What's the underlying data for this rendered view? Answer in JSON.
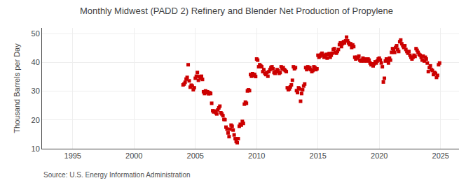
{
  "chart_data": {
    "type": "scatter",
    "title": "Monthly Midwest (PADD 2) Refinery and Blender Net Production of Propylene",
    "ylabel": "Thousand Barrels per Day",
    "annotations": [
      "Source: U.S. Energy Information Administration"
    ],
    "color": "#cc0000",
    "marker": "square",
    "grid": true,
    "xlim": [
      1992.5,
      2026.5
    ],
    "ylim": [
      10,
      52
    ],
    "xticks": [
      1995,
      2000,
      2005,
      2010,
      2015,
      2020,
      2025
    ],
    "yticks": [
      10,
      20,
      30,
      40,
      50
    ],
    "x": [
      2004.0,
      2004.083,
      2004.167,
      2004.25,
      2004.333,
      2004.417,
      2004.5,
      2004.583,
      2004.667,
      2004.75,
      2004.833,
      2004.917,
      2005.0,
      2005.083,
      2005.167,
      2005.25,
      2005.333,
      2005.417,
      2005.5,
      2005.583,
      2005.667,
      2005.75,
      2005.833,
      2005.917,
      2006.0,
      2006.083,
      2006.167,
      2006.25,
      2006.333,
      2006.417,
      2006.5,
      2006.583,
      2006.667,
      2006.75,
      2006.833,
      2006.917,
      2007.0,
      2007.083,
      2007.167,
      2007.25,
      2007.333,
      2007.417,
      2007.5,
      2007.583,
      2007.667,
      2007.75,
      2007.833,
      2007.917,
      2008.0,
      2008.083,
      2008.167,
      2008.25,
      2008.333,
      2008.417,
      2008.5,
      2008.583,
      2008.667,
      2008.75,
      2008.833,
      2008.917,
      2009.0,
      2009.083,
      2009.167,
      2009.25,
      2009.333,
      2009.417,
      2009.5,
      2009.583,
      2009.667,
      2009.75,
      2009.833,
      2009.917,
      2010.0,
      2010.083,
      2010.167,
      2010.25,
      2010.333,
      2010.417,
      2010.5,
      2010.583,
      2010.667,
      2010.75,
      2010.833,
      2010.917,
      2011.0,
      2011.083,
      2011.167,
      2011.25,
      2011.333,
      2011.417,
      2011.5,
      2011.583,
      2011.667,
      2011.75,
      2011.833,
      2011.917,
      2012.0,
      2012.083,
      2012.167,
      2012.25,
      2012.333,
      2012.417,
      2012.5,
      2012.583,
      2012.667,
      2012.75,
      2012.833,
      2012.917,
      2013.0,
      2013.083,
      2013.167,
      2013.25,
      2013.333,
      2013.417,
      2013.5,
      2013.583,
      2013.667,
      2013.75,
      2013.833,
      2013.917,
      2014.0,
      2014.083,
      2014.167,
      2014.25,
      2014.333,
      2014.417,
      2014.5,
      2014.583,
      2014.667,
      2014.75,
      2014.833,
      2014.917,
      2015.0,
      2015.083,
      2015.167,
      2015.25,
      2015.333,
      2015.417,
      2015.5,
      2015.583,
      2015.667,
      2015.75,
      2015.833,
      2015.917,
      2016.0,
      2016.083,
      2016.167,
      2016.25,
      2016.333,
      2016.417,
      2016.5,
      2016.583,
      2016.667,
      2016.75,
      2016.833,
      2016.917,
      2017.0,
      2017.083,
      2017.167,
      2017.25,
      2017.333,
      2017.417,
      2017.5,
      2017.583,
      2017.667,
      2017.75,
      2017.833,
      2017.917,
      2018.0,
      2018.083,
      2018.167,
      2018.25,
      2018.333,
      2018.417,
      2018.5,
      2018.583,
      2018.667,
      2018.75,
      2018.833,
      2018.917,
      2019.0,
      2019.083,
      2019.167,
      2019.25,
      2019.333,
      2019.417,
      2019.5,
      2019.583,
      2019.667,
      2019.75,
      2019.833,
      2019.917,
      2020.0,
      2020.083,
      2020.167,
      2020.25,
      2020.333,
      2020.417,
      2020.5,
      2020.583,
      2020.667,
      2020.75,
      2020.833,
      2020.917,
      2021.0,
      2021.083,
      2021.167,
      2021.25,
      2021.333,
      2021.417,
      2021.5,
      2021.583,
      2021.667,
      2021.75,
      2021.833,
      2021.917,
      2022.0,
      2022.083,
      2022.167,
      2022.25,
      2022.333,
      2022.417,
      2022.5,
      2022.583,
      2022.667,
      2022.75,
      2022.833,
      2022.917,
      2023.0,
      2023.083,
      2023.167,
      2023.25,
      2023.333,
      2023.417,
      2023.5,
      2023.583,
      2023.667,
      2023.75,
      2023.833,
      2023.917,
      2024.0,
      2024.083,
      2024.167,
      2024.25,
      2024.333,
      2024.417,
      2024.5,
      2024.583,
      2024.667,
      2024.75,
      2024.833,
      2024.917
    ],
    "values": [
      32.2,
      32.5,
      33.1,
      34.2,
      34.8,
      39.2,
      33.6,
      31.4,
      32.1,
      31.8,
      30.5,
      31.2,
      34.5,
      35.2,
      36.5,
      33.8,
      35.1,
      34.5,
      35.2,
      34.1,
      29.8,
      29.2,
      30.1,
      29.5,
      29.8,
      29.1,
      29.5,
      29.2,
      25.8,
      23.2,
      22.8,
      23.1,
      22.5,
      22.1,
      23.5,
      24.2,
      24.8,
      22.5,
      22.1,
      21.5,
      20.2,
      20.1,
      17.5,
      16.8,
      15.5,
      14.2,
      16.8,
      18.2,
      17.8,
      16.5,
      14.8,
      13.5,
      12.5,
      12.1,
      13.5,
      17.8,
      18.5,
      18.2,
      19.5,
      18.8,
      25.5,
      26.2,
      25.8,
      30.1,
      30.5,
      30.2,
      35.8,
      35.2,
      36.1,
      35.5,
      35.8,
      35.1,
      41.2,
      40.8,
      38.5,
      39.2,
      38.8,
      38.5,
      36.8,
      37.5,
      36.2,
      35.8,
      36.5,
      35.2,
      36.8,
      37.5,
      38.2,
      38.5,
      37.8,
      36.5,
      36.2,
      36.8,
      37.5,
      37.1,
      36.2,
      36.5,
      38.5,
      37.8,
      38.2,
      37.5,
      37.2,
      36.8,
      31.2,
      30.5,
      30.8,
      31.5,
      32.2,
      33.8,
      38.5,
      37.8,
      38.2,
      30.2,
      29.5,
      31.2,
      30.8,
      26.5,
      29.2,
      30.5,
      31.8,
      32.5,
      38.2,
      37.5,
      38.5,
      37.8,
      38.2,
      37.5,
      36.8,
      37.2,
      38.5,
      38.2,
      37.5,
      37.8,
      42.5,
      41.8,
      42.2,
      42.8,
      43.2,
      42.5,
      41.8,
      42.2,
      42.8,
      41.5,
      42.8,
      43.1,
      41.8,
      42.5,
      43.2,
      44.5,
      44.8,
      43.5,
      43.2,
      43.8,
      44.5,
      46.2,
      46.8,
      45.5,
      46.5,
      47.2,
      46.8,
      47.5,
      48.8,
      47.5,
      46.8,
      46.2,
      46.5,
      45.2,
      46.1,
      45.5,
      41.8,
      41.2,
      41.8,
      41.5,
      42.2,
      40.8,
      40.5,
      40.8,
      41.5,
      40.5,
      41.2,
      40.8,
      40.5,
      41.2,
      40.8,
      39.8,
      39.2,
      39.5,
      38.8,
      39.5,
      40.2,
      39.8,
      40.5,
      41.2,
      41.5,
      40.8,
      39.8,
      38.5,
      33.2,
      34.5,
      40.5,
      41.2,
      40.8,
      39.8,
      41.5,
      40.8,
      43.5,
      44.8,
      44.2,
      43.5,
      45.2,
      45.8,
      44.5,
      43.8,
      47.2,
      47.8,
      46.5,
      45.8,
      45.2,
      45.8,
      44.5,
      43.8,
      43.2,
      43.8,
      42.5,
      41.8,
      41.2,
      41.8,
      42.5,
      42.1,
      44.8,
      44.2,
      43.5,
      42.8,
      42.5,
      41.8,
      40.8,
      42.2,
      40.5,
      41.8,
      41.2,
      39.8,
      36.8,
      38.2,
      38.8,
      37.5,
      37.2,
      35.8,
      36.5,
      36.2,
      34.8,
      35.5,
      39.2,
      39.8
    ]
  }
}
